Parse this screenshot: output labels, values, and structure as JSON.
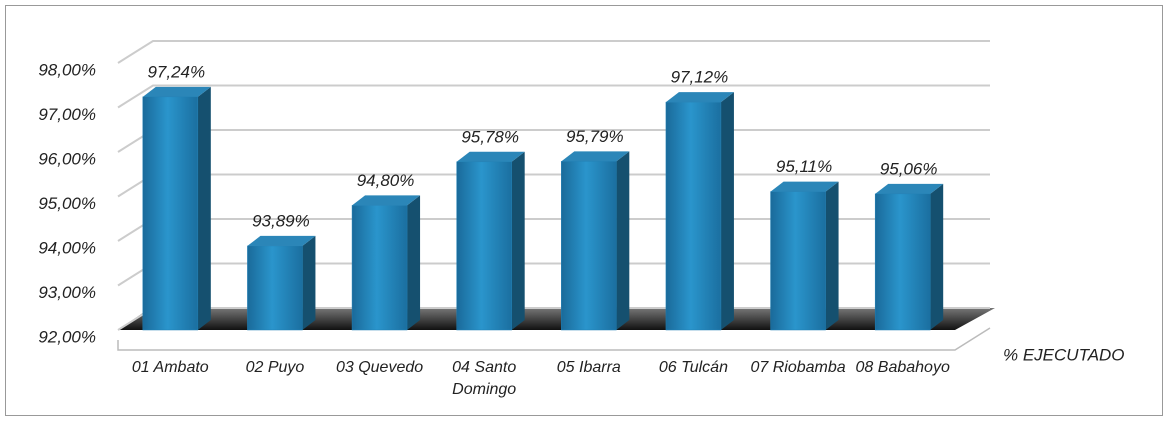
{
  "chart_data": {
    "type": "bar3d",
    "categories": [
      "01 Ambato",
      "02 Puyo",
      "03 Quevedo",
      "04 Santo Domingo",
      "05 Ibarra",
      "06 Tulcán",
      "07 Riobamba",
      "08 Babahoyo"
    ],
    "series": [
      {
        "name": "% EJECUTADO",
        "color": "#1f7fb4",
        "values": [
          97.24,
          93.89,
          94.8,
          95.78,
          95.79,
          97.12,
          95.11,
          95.06
        ],
        "value_labels": [
          "97,24%",
          "93,89%",
          "94,80%",
          "95,78%",
          "95,79%",
          "97,12%",
          "95,11%",
          "95,06%"
        ]
      }
    ],
    "ylim": [
      92,
      98
    ],
    "yticks": [
      {
        "value": 92,
        "label": "92,00%"
      },
      {
        "value": 93,
        "label": "93,00%"
      },
      {
        "value": 94,
        "label": "94,00%"
      },
      {
        "value": 95,
        "label": "95,00%"
      },
      {
        "value": 96,
        "label": "96,00%"
      },
      {
        "value": 97,
        "label": "97,00%"
      },
      {
        "value": 98,
        "label": "98,00%"
      }
    ],
    "grid": true
  }
}
